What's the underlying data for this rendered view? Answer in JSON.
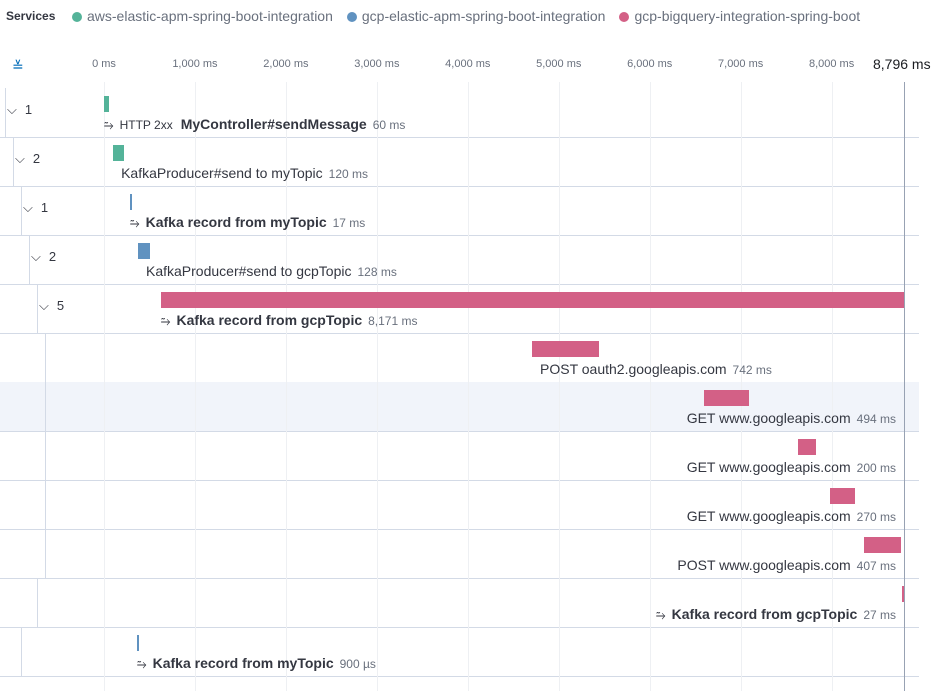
{
  "header": {
    "label": "Services",
    "services": [
      {
        "name": "aws-elastic-apm-spring-boot-integration",
        "color": "#54b399"
      },
      {
        "name": "gcp-elastic-apm-spring-boot-integration",
        "color": "#6092c0"
      },
      {
        "name": "gcp-bigquery-integration-spring-boot",
        "color": "#d36086"
      }
    ]
  },
  "timeline": {
    "xlim": [
      0,
      8796
    ],
    "ticks": [
      {
        "value": 0,
        "label": "0 ms"
      },
      {
        "value": 1000,
        "label": "1,000 ms"
      },
      {
        "value": 2000,
        "label": "2,000 ms"
      },
      {
        "value": 3000,
        "label": "3,000 ms"
      },
      {
        "value": 4000,
        "label": "4,000 ms"
      },
      {
        "value": 5000,
        "label": "5,000 ms"
      },
      {
        "value": 6000,
        "label": "6,000 ms"
      },
      {
        "value": 7000,
        "label": "7,000 ms"
      },
      {
        "value": 8000,
        "label": "8,000 ms"
      },
      {
        "value": 8796,
        "label": "8,796 ms"
      }
    ]
  },
  "items": [
    {
      "depth": 0,
      "children": "1",
      "kind": "transaction",
      "badge": "HTTP 2xx",
      "name": "MyController#sendMessage",
      "start": 0,
      "duration": 60,
      "duration_label": "60 ms",
      "color": "#54b399"
    },
    {
      "depth": 1,
      "children": "2",
      "kind": "span",
      "name": "KafkaProducer#send to myTopic",
      "start": 100,
      "duration": 120,
      "duration_label": "120 ms",
      "color": "#54b399"
    },
    {
      "depth": 2,
      "children": "1",
      "kind": "transaction",
      "name": "Kafka record from myTopic",
      "start": 286,
      "duration": 17,
      "duration_label": "17 ms",
      "color": "#6092c0"
    },
    {
      "depth": 3,
      "children": "2",
      "kind": "span",
      "name": "KafkaProducer#send to gcpTopic",
      "start": 374,
      "duration": 128,
      "duration_label": "128 ms",
      "color": "#6092c0"
    },
    {
      "depth": 4,
      "children": "5",
      "kind": "transaction",
      "name": "Kafka record from gcpTopic",
      "start": 625,
      "duration": 8171,
      "duration_label": "8,171 ms",
      "color": "#d36086"
    },
    {
      "depth": 5,
      "kind": "span",
      "name": "POST oauth2.googleapis.com",
      "start": 4706,
      "duration": 742,
      "duration_label": "742 ms",
      "color": "#d36086"
    },
    {
      "depth": 5,
      "kind": "span",
      "name": "GET www.googleapis.com",
      "start": 6597,
      "duration": 494,
      "duration_label": "494 ms",
      "color": "#d36086",
      "highlight": true
    },
    {
      "depth": 5,
      "kind": "span",
      "name": "GET www.googleapis.com",
      "start": 7631,
      "duration": 200,
      "duration_label": "200 ms",
      "color": "#d36086"
    },
    {
      "depth": 5,
      "kind": "span",
      "name": "GET www.googleapis.com",
      "start": 7982,
      "duration": 270,
      "duration_label": "270 ms",
      "color": "#d36086"
    },
    {
      "depth": 5,
      "kind": "span",
      "name": "POST www.googleapis.com",
      "start": 8356,
      "duration": 407,
      "duration_label": "407 ms",
      "color": "#d36086"
    },
    {
      "depth": 4,
      "kind": "transaction",
      "name": "Kafka record from gcpTopic",
      "start": 8774,
      "duration": 27,
      "duration_label": "27 ms",
      "color": "#d36086"
    },
    {
      "depth": 2,
      "kind": "transaction",
      "name": "Kafka record from myTopic",
      "start": 363,
      "duration": 0.9,
      "duration_label": "900 µs",
      "color": "#6092c0"
    }
  ]
}
